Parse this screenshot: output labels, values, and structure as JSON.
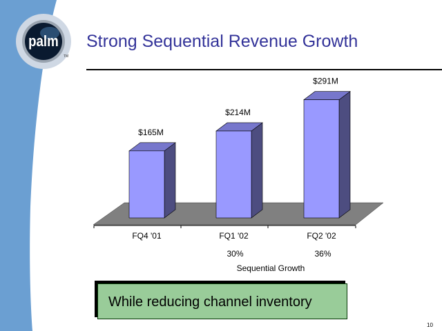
{
  "slide": {
    "title": "Strong Sequential Revenue Growth",
    "logo_text": "palm",
    "callout": "While reducing channel inventory",
    "page_number": "10",
    "colors": {
      "title": "#333399",
      "bar_front": "#9999ff",
      "bar_side": "#4d4d80",
      "floor": "#808080",
      "swoosh": "#6b9fd2",
      "callout": "#99cc99"
    }
  },
  "chart_data": {
    "type": "bar",
    "style": "3d",
    "categories": [
      "FQ4 '01",
      "FQ1 '02",
      "FQ2 '02"
    ],
    "values": [
      165,
      214,
      291
    ],
    "data_labels": [
      "$165M",
      "$214M",
      "$291M"
    ],
    "growth_labels": [
      "",
      "30%",
      "36%"
    ],
    "growth_caption": "Sequential Growth",
    "title": "",
    "xlabel": "",
    "ylabel": "",
    "grid": false
  }
}
